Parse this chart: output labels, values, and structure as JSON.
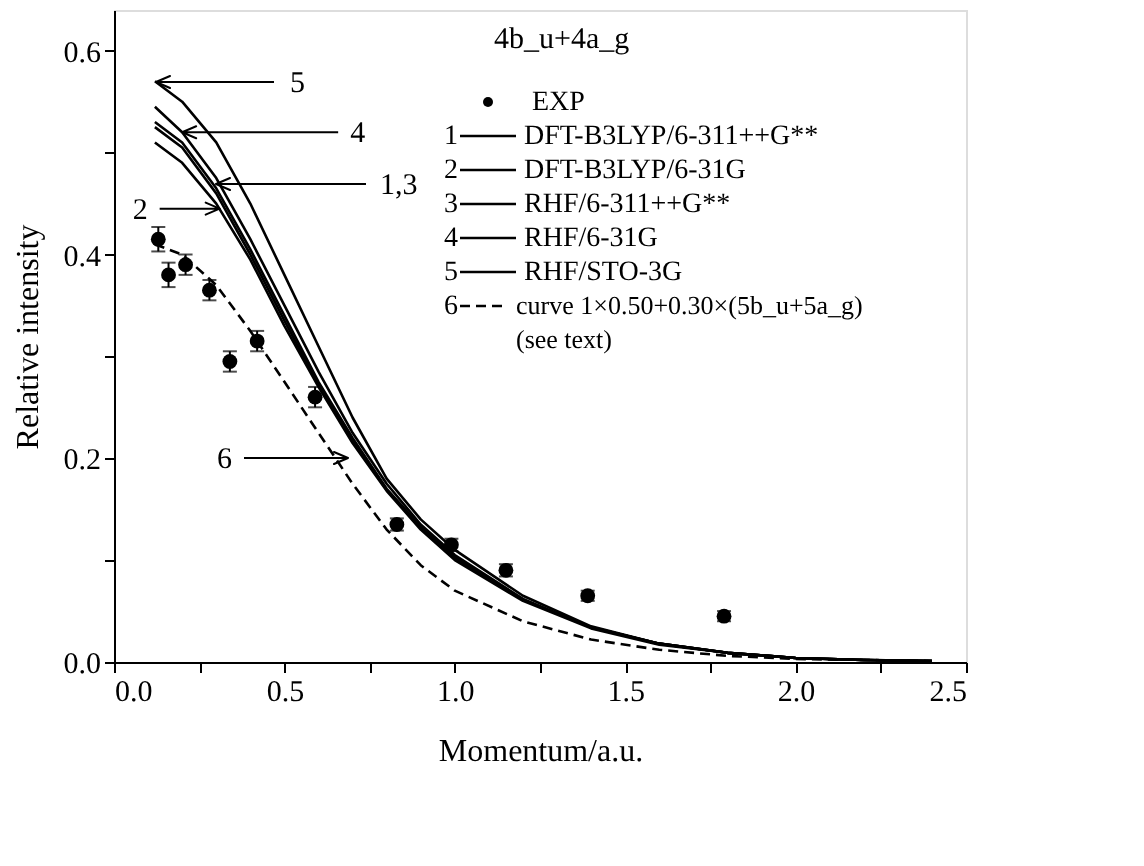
{
  "chart_data": {
    "type": "line",
    "xlabel": "Momentum/a.u.",
    "ylabel": "Relative intensity",
    "legend_title": "4b_u+4a_g",
    "xlim": [
      0,
      2.5
    ],
    "ylim": [
      0,
      0.64
    ],
    "xticks": [
      {
        "value": 0,
        "label": "0.0"
      },
      {
        "value": 0.25,
        "label": null
      },
      {
        "value": 0.5,
        "label": "0.5"
      },
      {
        "value": 0.75,
        "label": null
      },
      {
        "value": 1.0,
        "label": "1.0"
      },
      {
        "value": 1.25,
        "label": null
      },
      {
        "value": 1.5,
        "label": "1.5"
      },
      {
        "value": 1.75,
        "label": null
      },
      {
        "value": 2.0,
        "label": "2.0"
      },
      {
        "value": 2.25,
        "label": null
      },
      {
        "value": 2.5,
        "label": "2.5"
      }
    ],
    "yticks": [
      {
        "value": 0,
        "label": "0.0"
      },
      {
        "value": 0.1,
        "label": null
      },
      {
        "value": 0.2,
        "label": "0.2"
      },
      {
        "value": 0.3,
        "label": null
      },
      {
        "value": 0.4,
        "label": "0.4"
      },
      {
        "value": 0.5,
        "label": null
      },
      {
        "value": 0.6,
        "label": "0.6"
      }
    ],
    "grid": false,
    "legend": "top right",
    "series": [
      {
        "name": "EXP",
        "type": "scatter",
        "marker": "circle",
        "color": "#000000",
        "x": [
          0.13,
          0.16,
          0.21,
          0.28,
          0.34,
          0.42,
          0.59,
          0.83,
          0.99,
          1.15,
          1.39,
          1.79
        ],
        "values": [
          0.415,
          0.38,
          0.39,
          0.365,
          0.295,
          0.315,
          0.26,
          0.135,
          0.115,
          0.09,
          0.065,
          0.045
        ],
        "errors": [
          0.012,
          0.012,
          0.01,
          0.01,
          0.01,
          0.01,
          0.01,
          0.006,
          0.006,
          0.006,
          0.005,
          0.005
        ]
      },
      {
        "name": "1 DFT-B3LYP/6-311++G**",
        "type": "line",
        "line_style": "solid",
        "color": "#000000",
        "x": [
          0.12,
          0.2,
          0.3,
          0.4,
          0.5,
          0.6,
          0.7,
          0.8,
          0.9,
          1.0,
          1.2,
          1.4,
          1.6,
          1.8,
          2.0,
          2.2,
          2.4
        ],
        "values": [
          0.53,
          0.51,
          0.465,
          0.405,
          0.34,
          0.275,
          0.22,
          0.17,
          0.133,
          0.103,
          0.061,
          0.034,
          0.018,
          0.009,
          0.004,
          0.002,
          0.001
        ]
      },
      {
        "name": "2 DFT-B3LYP/6-31G",
        "type": "line",
        "line_style": "solid",
        "color": "#000000",
        "x": [
          0.12,
          0.2,
          0.3,
          0.4,
          0.5,
          0.6,
          0.7,
          0.8,
          0.9,
          1.0,
          1.2,
          1.4,
          1.6,
          1.8,
          2.0,
          2.2,
          2.4
        ],
        "values": [
          0.51,
          0.49,
          0.45,
          0.395,
          0.33,
          0.27,
          0.215,
          0.168,
          0.13,
          0.1,
          0.06,
          0.033,
          0.017,
          0.009,
          0.004,
          0.002,
          0.001
        ]
      },
      {
        "name": "3 RHF/6-311++G**",
        "type": "line",
        "line_style": "solid",
        "color": "#000000",
        "x": [
          0.12,
          0.2,
          0.3,
          0.4,
          0.5,
          0.6,
          0.7,
          0.8,
          0.9,
          1.0,
          1.2,
          1.4,
          1.6,
          1.8,
          2.0,
          2.2,
          2.4
        ],
        "values": [
          0.525,
          0.505,
          0.46,
          0.4,
          0.335,
          0.272,
          0.218,
          0.169,
          0.132,
          0.102,
          0.061,
          0.034,
          0.018,
          0.009,
          0.004,
          0.002,
          0.001
        ]
      },
      {
        "name": "4 RHF/6-31G",
        "type": "line",
        "line_style": "solid",
        "color": "#000000",
        "x": [
          0.12,
          0.2,
          0.3,
          0.4,
          0.5,
          0.6,
          0.7,
          0.8,
          0.9,
          1.0,
          1.2,
          1.4,
          1.6,
          1.8,
          2.0,
          2.2,
          2.4
        ],
        "values": [
          0.545,
          0.52,
          0.475,
          0.415,
          0.35,
          0.285,
          0.225,
          0.175,
          0.135,
          0.105,
          0.062,
          0.034,
          0.018,
          0.009,
          0.004,
          0.002,
          0.001
        ]
      },
      {
        "name": "5 RHF/STO-3G",
        "type": "line",
        "line_style": "solid",
        "color": "#000000",
        "x": [
          0.12,
          0.2,
          0.3,
          0.4,
          0.5,
          0.6,
          0.7,
          0.8,
          0.9,
          1.0,
          1.2,
          1.4,
          1.6,
          1.8,
          2.0,
          2.2,
          2.4
        ],
        "values": [
          0.57,
          0.55,
          0.51,
          0.45,
          0.38,
          0.31,
          0.24,
          0.18,
          0.14,
          0.11,
          0.065,
          0.035,
          0.018,
          0.009,
          0.004,
          0.002,
          0.001
        ]
      },
      {
        "name": "6 curve 1×0.50+0.30×(5b_u+5a_g)\n(see text)",
        "type": "line",
        "line_style": "dashed",
        "color": "#000000",
        "x": [
          0.12,
          0.2,
          0.3,
          0.4,
          0.5,
          0.6,
          0.7,
          0.8,
          0.9,
          1.0,
          1.2,
          1.4,
          1.6,
          1.8,
          2.0,
          2.2,
          2.4
        ],
        "values": [
          0.41,
          0.4,
          0.37,
          0.325,
          0.275,
          0.225,
          0.175,
          0.13,
          0.095,
          0.07,
          0.04,
          0.022,
          0.012,
          0.006,
          0.003,
          0.002,
          0.001
        ]
      }
    ],
    "annotations": [
      "5",
      {
        "text": "4",
        "x": 0.2,
        "y": 0.52
      },
      "1,3",
      {
        "text": "2",
        "x": 0.31,
        "y": 0.445
      },
      "6"
    ]
  }
}
